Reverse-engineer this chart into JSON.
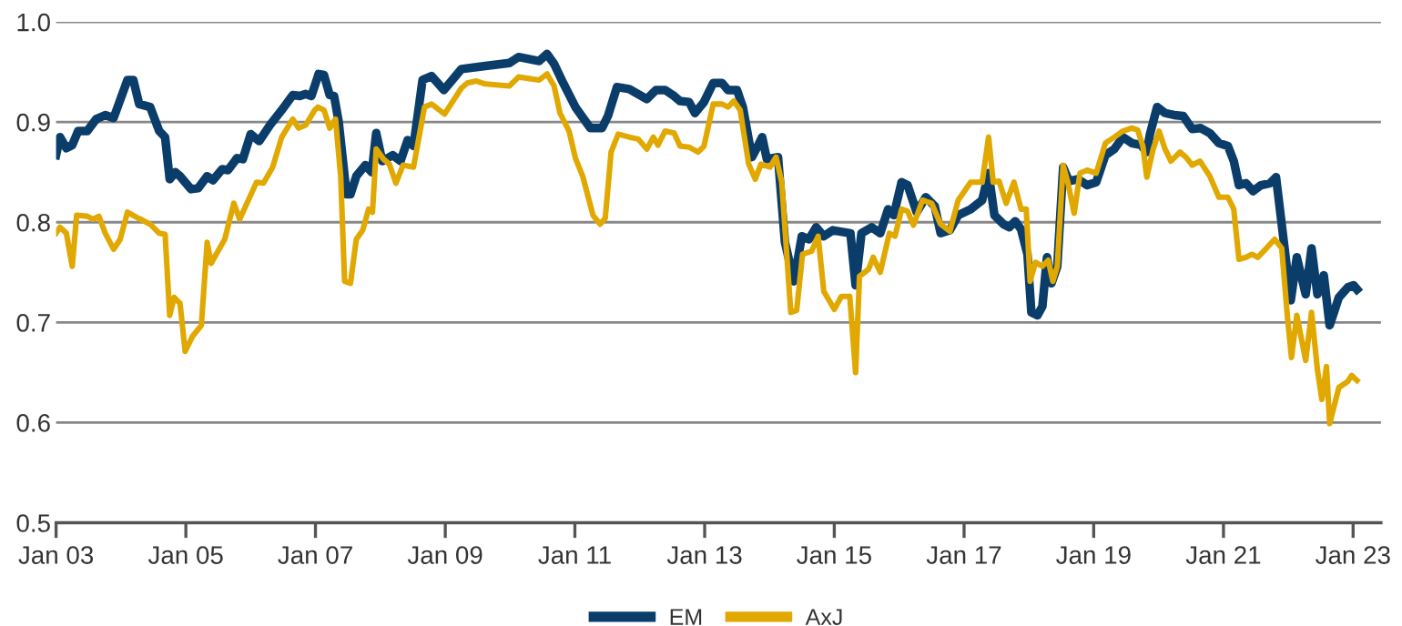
{
  "chart_data": {
    "type": "line",
    "xlim": [
      "2003-01-01",
      "2023-06-07"
    ],
    "xticks": [
      {
        "value": "2003-01-01",
        "label": "Jan 03"
      },
      {
        "value": "2005-01-01",
        "label": "Jan 05"
      },
      {
        "value": "2007-01-01",
        "label": "Jan 07"
      },
      {
        "value": "2009-01-01",
        "label": "Jan 09"
      },
      {
        "value": "2011-01-01",
        "label": "Jan 11"
      },
      {
        "value": "2013-01-01",
        "label": "Jan 13"
      },
      {
        "value": "2015-01-01",
        "label": "Jan 15"
      },
      {
        "value": "2017-01-01",
        "label": "Jan 17"
      },
      {
        "value": "2019-01-01",
        "label": "Jan 19"
      },
      {
        "value": "2021-01-01",
        "label": "Jan 21"
      },
      {
        "value": "2023-01-01",
        "label": "Jan 23"
      }
    ],
    "ylim": [
      0.5,
      1.0
    ],
    "yticks": [
      0.5,
      0.6,
      0.7,
      0.8,
      0.9,
      {
        "value": 1.0,
        "label": "1.0"
      }
    ],
    "grid": "y",
    "legend": "bottom",
    "series": [
      {
        "name": "EM",
        "color": "#0b3d6b",
        "x": [
          "2003-01-01",
          "2003-01-23",
          "2003-02-28",
          "2003-04-02",
          "2003-05-05",
          "2003-06-25",
          "2003-08-15",
          "2003-10-05",
          "2003-11-21",
          "2004-02-07",
          "2004-03-11",
          "2004-04-13",
          "2004-06-14",
          "2004-08-04",
          "2004-09-06",
          "2004-10-02",
          "2004-11-03",
          "2004-11-29",
          "2005-01-30",
          "2005-03-11",
          "2005-05-01",
          "2005-06-03",
          "2005-07-24",
          "2005-08-26",
          "2005-10-16",
          "2005-11-18",
          "2006-01-01",
          "2006-02-18",
          "2006-04-20",
          "2006-06-25",
          "2006-08-26",
          "2006-10-05",
          "2006-11-07",
          "2006-12-09",
          "2007-01-19",
          "2007-02-18",
          "2007-03-22",
          "2007-04-16",
          "2007-05-12",
          "2007-06-25",
          "2007-07-17",
          "2007-08-19",
          "2007-10-09",
          "2007-11-14",
          "2007-12-09",
          "2008-01-12",
          "2008-03-11",
          "2008-04-24",
          "2008-06-03",
          "2008-07-06",
          "2008-08-26",
          "2008-10-16",
          "2008-12-24",
          "2009-04-02",
          "2009-08-15",
          "2009-12-28",
          "2010-02-18",
          "2010-06-14",
          "2010-07-28",
          "2010-09-06",
          "2010-10-27",
          "2011-01-04",
          "2011-03-29",
          "2011-06-03",
          "2011-07-06",
          "2011-08-26",
          "2011-11-03",
          "2012-02-10",
          "2012-04-02",
          "2012-05-23",
          "2012-07-13",
          "2012-08-15",
          "2012-10-05",
          "2012-11-07",
          "2012-12-28",
          "2013-02-18",
          "2013-04-09",
          "2013-05-12",
          "2013-07-02",
          "2013-08-04",
          "2013-09-24",
          "2013-10-27",
          "2013-11-21",
          "2013-12-17",
          "2014-02-18",
          "2014-03-29",
          "2014-05-19",
          "2014-07-02",
          "2014-08-11",
          "2014-09-21",
          "2014-11-03",
          "2014-12-24",
          "2015-04-02",
          "2015-05-01",
          "2015-06-03",
          "2015-07-31",
          "2015-09-17",
          "2015-10-31",
          "2015-12-02",
          "2016-01-15",
          "2016-02-18",
          "2016-04-09",
          "2016-05-30",
          "2016-07-20",
          "2016-08-22",
          "2016-10-13",
          "2016-11-29",
          "2017-02-07",
          "2017-04-13",
          "2017-05-19",
          "2017-06-21",
          "2017-08-11",
          "2017-09-13",
          "2017-10-16",
          "2017-11-18",
          "2017-12-24",
          "2018-01-15",
          "2018-02-18",
          "2018-03-18",
          "2018-04-13",
          "2018-05-08",
          "2018-06-10",
          "2018-07-13",
          "2018-08-15",
          "2018-10-05",
          "2018-11-25",
          "2019-01-15",
          "2019-03-08",
          "2019-04-27",
          "2019-06-14",
          "2019-08-04",
          "2019-09-24",
          "2019-10-27",
          "2019-11-14",
          "2019-12-24",
          "2020-02-07",
          "2020-03-29",
          "2020-05-19",
          "2020-07-09",
          "2020-08-26",
          "2020-10-16",
          "2020-12-06",
          "2021-01-26",
          "2021-02-28",
          "2021-03-29",
          "2021-05-08",
          "2021-06-17",
          "2021-07-31",
          "2021-09-21",
          "2021-10-24",
          "2021-11-25",
          "2022-01-15",
          "2022-02-18",
          "2022-04-09",
          "2022-05-12",
          "2022-06-14",
          "2022-07-20",
          "2022-08-22",
          "2022-10-13",
          "2022-12-02",
          "2023-01-04",
          "2023-01-23"
        ],
        "values": [
          0.867,
          0.885,
          0.874,
          0.877,
          0.891,
          0.891,
          0.903,
          0.907,
          0.904,
          0.942,
          0.942,
          0.918,
          0.915,
          0.891,
          0.885,
          0.843,
          0.85,
          0.846,
          0.833,
          0.834,
          0.846,
          0.842,
          0.853,
          0.852,
          0.864,
          0.863,
          0.888,
          0.881,
          0.897,
          0.912,
          0.927,
          0.926,
          0.928,
          0.926,
          0.948,
          0.947,
          0.927,
          0.926,
          0.9,
          0.828,
          0.828,
          0.846,
          0.857,
          0.85,
          0.889,
          0.861,
          0.867,
          0.861,
          0.882,
          0.876,
          0.942,
          0.946,
          0.932,
          0.953,
          0.956,
          0.959,
          0.965,
          0.961,
          0.968,
          0.958,
          0.939,
          0.915,
          0.894,
          0.894,
          0.906,
          0.935,
          0.933,
          0.923,
          0.932,
          0.932,
          0.926,
          0.921,
          0.92,
          0.909,
          0.92,
          0.939,
          0.939,
          0.932,
          0.932,
          0.915,
          0.865,
          0.876,
          0.885,
          0.863,
          0.865,
          0.78,
          0.741,
          0.786,
          0.783,
          0.795,
          0.786,
          0.792,
          0.789,
          0.737,
          0.789,
          0.795,
          0.789,
          0.813,
          0.807,
          0.84,
          0.837,
          0.81,
          0.825,
          0.816,
          0.789,
          0.792,
          0.807,
          0.813,
          0.822,
          0.849,
          0.807,
          0.798,
          0.795,
          0.801,
          0.793,
          0.768,
          0.71,
          0.707,
          0.716,
          0.765,
          0.739,
          0.756,
          0.855,
          0.841,
          0.843,
          0.837,
          0.84,
          0.867,
          0.873,
          0.885,
          0.879,
          0.877,
          0.87,
          0.888,
          0.915,
          0.909,
          0.907,
          0.906,
          0.893,
          0.894,
          0.889,
          0.879,
          0.876,
          0.861,
          0.837,
          0.839,
          0.831,
          0.837,
          0.839,
          0.845,
          0.798,
          0.722,
          0.765,
          0.728,
          0.774,
          0.728,
          0.747,
          0.697,
          0.725,
          0.735,
          0.737,
          0.733
        ]
      },
      {
        "name": "AxJ",
        "color": "#e0a800",
        "x": [
          "2003-01-01",
          "2003-01-23",
          "2003-02-28",
          "2003-04-02",
          "2003-04-27",
          "2003-06-25",
          "2003-07-28",
          "2003-08-30",
          "2003-10-05",
          "2003-11-21",
          "2003-12-28",
          "2004-02-07",
          "2004-04-09",
          "2004-06-14",
          "2004-08-04",
          "2004-09-06",
          "2004-10-02",
          "2004-10-27",
          "2004-11-29",
          "2004-12-28",
          "2005-02-07",
          "2005-03-29",
          "2005-05-01",
          "2005-05-23",
          "2005-08-08",
          "2005-09-28",
          "2005-10-31",
          "2006-02-03",
          "2006-03-14",
          "2006-05-05",
          "2006-06-25",
          "2006-08-26",
          "2006-09-28",
          "2006-11-07",
          "2006-12-28",
          "2007-01-15",
          "2007-02-18",
          "2007-03-22",
          "2007-04-24",
          "2007-05-23",
          "2007-06-14",
          "2007-07-17",
          "2007-08-19",
          "2007-09-24",
          "2007-10-27",
          "2007-11-18",
          "2007-12-09",
          "2008-01-19",
          "2008-02-21",
          "2008-03-29",
          "2008-05-08",
          "2008-07-06",
          "2008-09-06",
          "2008-10-16",
          "2008-12-28",
          "2009-04-02",
          "2009-05-05",
          "2009-06-25",
          "2009-08-15",
          "2009-12-28",
          "2010-02-18",
          "2010-06-14",
          "2010-07-28",
          "2010-09-06",
          "2010-10-09",
          "2010-11-29",
          "2011-01-04",
          "2011-02-14",
          "2011-04-13",
          "2011-05-23",
          "2011-06-21",
          "2011-07-24",
          "2011-09-02",
          "2011-11-03",
          "2011-12-24",
          "2012-02-10",
          "2012-03-18",
          "2012-04-13",
          "2012-05-23",
          "2012-07-13",
          "2012-08-15",
          "2012-10-05",
          "2012-11-25",
          "2012-12-28",
          "2013-02-18",
          "2013-04-09",
          "2013-05-12",
          "2013-06-14",
          "2013-07-20",
          "2013-09-06",
          "2013-10-13",
          "2013-11-14",
          "2014-01-04",
          "2014-02-07",
          "2014-03-11",
          "2014-05-01",
          "2014-06-03",
          "2014-07-06",
          "2014-08-26",
          "2014-10-02",
          "2014-11-03",
          "2015-01-01",
          "2015-02-10",
          "2015-03-29",
          "2015-05-01",
          "2015-05-23",
          "2015-07-13",
          "2015-08-08",
          "2015-09-17",
          "2015-11-07",
          "2015-12-09",
          "2016-01-15",
          "2016-02-18",
          "2016-03-22",
          "2016-05-12",
          "2016-07-02",
          "2016-08-22",
          "2016-10-13",
          "2016-11-29",
          "2017-02-07",
          "2017-04-13",
          "2017-05-19",
          "2017-06-14",
          "2017-07-17",
          "2017-08-26",
          "2017-10-09",
          "2017-11-18",
          "2017-12-17",
          "2018-01-08",
          "2018-02-07",
          "2018-03-18",
          "2018-04-20",
          "2018-05-16",
          "2018-06-10",
          "2018-07-13",
          "2018-08-08",
          "2018-09-13",
          "2018-10-16",
          "2018-11-25",
          "2019-01-15",
          "2019-03-08",
          "2019-04-27",
          "2019-06-14",
          "2019-08-04",
          "2019-09-06",
          "2019-10-05",
          "2019-10-27",
          "2019-12-02",
          "2020-01-04",
          "2020-02-07",
          "2020-03-11",
          "2020-05-01",
          "2020-06-03",
          "2020-07-09",
          "2020-08-22",
          "2020-10-16",
          "2020-12-06",
          "2021-01-26",
          "2021-02-28",
          "2021-03-29",
          "2021-05-08",
          "2021-06-10",
          "2021-07-13",
          "2021-08-15",
          "2021-10-16",
          "2021-11-25",
          "2021-12-28",
          "2022-01-19",
          "2022-02-18",
          "2022-04-09",
          "2022-05-12",
          "2022-06-14",
          "2022-07-09",
          "2022-08-04",
          "2022-08-22",
          "2022-10-13",
          "2022-12-02",
          "2022-12-24",
          "2023-01-23"
        ],
        "values": [
          0.789,
          0.795,
          0.789,
          0.756,
          0.807,
          0.806,
          0.803,
          0.806,
          0.789,
          0.773,
          0.783,
          0.81,
          0.804,
          0.798,
          0.789,
          0.788,
          0.707,
          0.725,
          0.719,
          0.671,
          0.686,
          0.697,
          0.78,
          0.759,
          0.783,
          0.819,
          0.803,
          0.84,
          0.839,
          0.855,
          0.885,
          0.903,
          0.894,
          0.897,
          0.912,
          0.915,
          0.912,
          0.894,
          0.903,
          0.846,
          0.741,
          0.739,
          0.783,
          0.792,
          0.813,
          0.81,
          0.873,
          0.863,
          0.858,
          0.839,
          0.857,
          0.855,
          0.915,
          0.918,
          0.908,
          0.934,
          0.939,
          0.941,
          0.938,
          0.936,
          0.945,
          0.942,
          0.948,
          0.936,
          0.909,
          0.891,
          0.864,
          0.846,
          0.807,
          0.798,
          0.804,
          0.87,
          0.888,
          0.885,
          0.883,
          0.873,
          0.885,
          0.877,
          0.891,
          0.889,
          0.876,
          0.875,
          0.87,
          0.876,
          0.918,
          0.918,
          0.915,
          0.921,
          0.912,
          0.858,
          0.843,
          0.858,
          0.855,
          0.865,
          0.84,
          0.71,
          0.712,
          0.768,
          0.771,
          0.786,
          0.731,
          0.713,
          0.726,
          0.726,
          0.65,
          0.746,
          0.753,
          0.765,
          0.75,
          0.789,
          0.786,
          0.813,
          0.811,
          0.797,
          0.822,
          0.819,
          0.798,
          0.791,
          0.822,
          0.84,
          0.84,
          0.885,
          0.84,
          0.841,
          0.819,
          0.84,
          0.813,
          0.813,
          0.741,
          0.76,
          0.756,
          0.762,
          0.741,
          0.756,
          0.857,
          0.84,
          0.809,
          0.849,
          0.852,
          0.849,
          0.879,
          0.885,
          0.891,
          0.894,
          0.892,
          0.876,
          0.845,
          0.873,
          0.891,
          0.873,
          0.861,
          0.87,
          0.865,
          0.857,
          0.861,
          0.846,
          0.825,
          0.825,
          0.813,
          0.763,
          0.765,
          0.768,
          0.765,
          0.771,
          0.783,
          0.774,
          0.704,
          0.665,
          0.707,
          0.662,
          0.71,
          0.653,
          0.623,
          0.656,
          0.599,
          0.635,
          0.641,
          0.647,
          0.642
        ]
      }
    ]
  }
}
